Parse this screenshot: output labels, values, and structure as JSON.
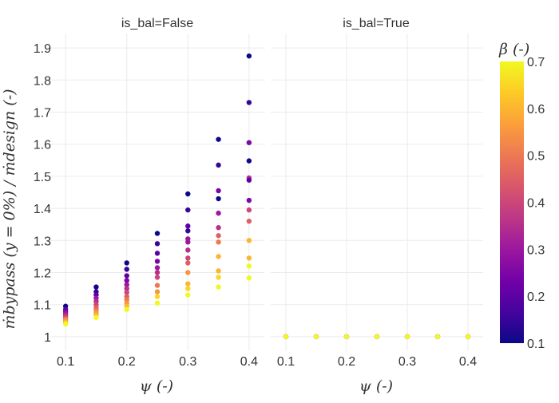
{
  "chart_data": {
    "type": "scatter",
    "facets": [
      {
        "title": "is_bal=False",
        "points": [
          {
            "x": 0.1,
            "y": 1.095,
            "beta": 0.1
          },
          {
            "x": 0.1,
            "y": 1.085,
            "beta": 0.2
          },
          {
            "x": 0.1,
            "y": 1.078,
            "beta": 0.25
          },
          {
            "x": 0.1,
            "y": 1.072,
            "beta": 0.3
          },
          {
            "x": 0.1,
            "y": 1.066,
            "beta": 0.35
          },
          {
            "x": 0.1,
            "y": 1.06,
            "beta": 0.4
          },
          {
            "x": 0.1,
            "y": 1.055,
            "beta": 0.5
          },
          {
            "x": 0.1,
            "y": 1.05,
            "beta": 0.55
          },
          {
            "x": 0.1,
            "y": 1.045,
            "beta": 0.6
          },
          {
            "x": 0.1,
            "y": 1.04,
            "beta": 0.7
          },
          {
            "x": 0.15,
            "y": 1.155,
            "beta": 0.1
          },
          {
            "x": 0.15,
            "y": 1.14,
            "beta": 0.15
          },
          {
            "x": 0.15,
            "y": 1.13,
            "beta": 0.2
          },
          {
            "x": 0.15,
            "y": 1.12,
            "beta": 0.3
          },
          {
            "x": 0.15,
            "y": 1.11,
            "beta": 0.35
          },
          {
            "x": 0.15,
            "y": 1.1,
            "beta": 0.4
          },
          {
            "x": 0.15,
            "y": 1.09,
            "beta": 0.45
          },
          {
            "x": 0.15,
            "y": 1.082,
            "beta": 0.5
          },
          {
            "x": 0.15,
            "y": 1.075,
            "beta": 0.55
          },
          {
            "x": 0.15,
            "y": 1.068,
            "beta": 0.6
          },
          {
            "x": 0.15,
            "y": 1.06,
            "beta": 0.7
          },
          {
            "x": 0.2,
            "y": 1.23,
            "beta": 0.1
          },
          {
            "x": 0.2,
            "y": 1.21,
            "beta": 0.15
          },
          {
            "x": 0.2,
            "y": 1.19,
            "beta": 0.2
          },
          {
            "x": 0.2,
            "y": 1.175,
            "beta": 0.25
          },
          {
            "x": 0.2,
            "y": 1.162,
            "beta": 0.3
          },
          {
            "x": 0.2,
            "y": 1.15,
            "beta": 0.35
          },
          {
            "x": 0.2,
            "y": 1.138,
            "beta": 0.4
          },
          {
            "x": 0.2,
            "y": 1.125,
            "beta": 0.45
          },
          {
            "x": 0.2,
            "y": 1.115,
            "beta": 0.5
          },
          {
            "x": 0.2,
            "y": 1.105,
            "beta": 0.55
          },
          {
            "x": 0.2,
            "y": 1.095,
            "beta": 0.6
          },
          {
            "x": 0.2,
            "y": 1.085,
            "beta": 0.7
          },
          {
            "x": 0.25,
            "y": 1.322,
            "beta": 0.1
          },
          {
            "x": 0.25,
            "y": 1.29,
            "beta": 0.15
          },
          {
            "x": 0.25,
            "y": 1.26,
            "beta": 0.2
          },
          {
            "x": 0.25,
            "y": 1.235,
            "beta": 0.25
          },
          {
            "x": 0.25,
            "y": 1.215,
            "beta": 0.3
          },
          {
            "x": 0.25,
            "y": 1.2,
            "beta": 0.35
          },
          {
            "x": 0.25,
            "y": 1.185,
            "beta": 0.4
          },
          {
            "x": 0.25,
            "y": 1.16,
            "beta": 0.5
          },
          {
            "x": 0.25,
            "y": 1.14,
            "beta": 0.55
          },
          {
            "x": 0.25,
            "y": 1.125,
            "beta": 0.65
          },
          {
            "x": 0.25,
            "y": 1.105,
            "beta": 0.7
          },
          {
            "x": 0.3,
            "y": 1.445,
            "beta": 0.1
          },
          {
            "x": 0.3,
            "y": 1.395,
            "beta": 0.15
          },
          {
            "x": 0.3,
            "y": 1.345,
            "beta": 0.2
          },
          {
            "x": 0.3,
            "y": 1.33,
            "beta": 0.15
          },
          {
            "x": 0.3,
            "y": 1.305,
            "beta": 0.3
          },
          {
            "x": 0.3,
            "y": 1.295,
            "beta": 0.3
          },
          {
            "x": 0.3,
            "y": 1.27,
            "beta": 0.35
          },
          {
            "x": 0.3,
            "y": 1.245,
            "beta": 0.4
          },
          {
            "x": 0.3,
            "y": 1.23,
            "beta": 0.45
          },
          {
            "x": 0.3,
            "y": 1.2,
            "beta": 0.55
          },
          {
            "x": 0.3,
            "y": 1.165,
            "beta": 0.6
          },
          {
            "x": 0.3,
            "y": 1.15,
            "beta": 0.65
          },
          {
            "x": 0.3,
            "y": 1.13,
            "beta": 0.7
          },
          {
            "x": 0.35,
            "y": 1.615,
            "beta": 0.1
          },
          {
            "x": 0.35,
            "y": 1.535,
            "beta": 0.15
          },
          {
            "x": 0.35,
            "y": 1.455,
            "beta": 0.25
          },
          {
            "x": 0.35,
            "y": 1.43,
            "beta": 0.1
          },
          {
            "x": 0.35,
            "y": 1.385,
            "beta": 0.3
          },
          {
            "x": 0.35,
            "y": 1.34,
            "beta": 0.35
          },
          {
            "x": 0.35,
            "y": 1.315,
            "beta": 0.45
          },
          {
            "x": 0.35,
            "y": 1.295,
            "beta": 0.5
          },
          {
            "x": 0.35,
            "y": 1.25,
            "beta": 0.6
          },
          {
            "x": 0.35,
            "y": 1.205,
            "beta": 0.6
          },
          {
            "x": 0.35,
            "y": 1.185,
            "beta": 0.65
          },
          {
            "x": 0.35,
            "y": 1.155,
            "beta": 0.7
          },
          {
            "x": 0.4,
            "y": 1.875,
            "beta": 0.1
          },
          {
            "x": 0.4,
            "y": 1.73,
            "beta": 0.15
          },
          {
            "x": 0.4,
            "y": 1.605,
            "beta": 0.25
          },
          {
            "x": 0.4,
            "y": 1.548,
            "beta": 0.1
          },
          {
            "x": 0.4,
            "y": 1.495,
            "beta": 0.35
          },
          {
            "x": 0.4,
            "y": 1.488,
            "beta": 0.2
          },
          {
            "x": 0.4,
            "y": 1.425,
            "beta": 0.25
          },
          {
            "x": 0.4,
            "y": 1.395,
            "beta": 0.4
          },
          {
            "x": 0.4,
            "y": 1.36,
            "beta": 0.45
          },
          {
            "x": 0.4,
            "y": 1.3,
            "beta": 0.6
          },
          {
            "x": 0.4,
            "y": 1.245,
            "beta": 0.6
          },
          {
            "x": 0.4,
            "y": 1.22,
            "beta": 0.7
          },
          {
            "x": 0.4,
            "y": 1.183,
            "beta": 0.7
          }
        ]
      },
      {
        "title": "is_bal=True",
        "points": [
          {
            "x": 0.1,
            "y": 1.0,
            "beta": 0.1
          },
          {
            "x": 0.1,
            "y": 1.0,
            "beta": 0.4
          },
          {
            "x": 0.1,
            "y": 1.0,
            "beta": 0.7
          },
          {
            "x": 0.15,
            "y": 1.0,
            "beta": 0.1
          },
          {
            "x": 0.15,
            "y": 1.0,
            "beta": 0.4
          },
          {
            "x": 0.15,
            "y": 1.0,
            "beta": 0.7
          },
          {
            "x": 0.2,
            "y": 1.0,
            "beta": 0.1
          },
          {
            "x": 0.2,
            "y": 1.0,
            "beta": 0.4
          },
          {
            "x": 0.2,
            "y": 1.0,
            "beta": 0.7
          },
          {
            "x": 0.25,
            "y": 1.0,
            "beta": 0.1
          },
          {
            "x": 0.25,
            "y": 1.0,
            "beta": 0.4
          },
          {
            "x": 0.25,
            "y": 1.0,
            "beta": 0.7
          },
          {
            "x": 0.3,
            "y": 1.0,
            "beta": 0.1
          },
          {
            "x": 0.3,
            "y": 1.0,
            "beta": 0.4
          },
          {
            "x": 0.3,
            "y": 1.0,
            "beta": 0.7
          },
          {
            "x": 0.35,
            "y": 1.0,
            "beta": 0.1
          },
          {
            "x": 0.35,
            "y": 1.0,
            "beta": 0.4
          },
          {
            "x": 0.35,
            "y": 1.0,
            "beta": 0.7
          },
          {
            "x": 0.4,
            "y": 1.0,
            "beta": 0.1
          },
          {
            "x": 0.4,
            "y": 1.0,
            "beta": 0.4
          },
          {
            "x": 0.4,
            "y": 1.0,
            "beta": 0.7
          }
        ]
      }
    ],
    "xlabel": "ψ (-)",
    "ylabel": "ṁbypass (y = 0%) / ṁdesign (-)",
    "xlim": [
      0.075,
      0.425
    ],
    "ylim": [
      0.955,
      1.945
    ],
    "xticks": [
      0.1,
      0.2,
      0.3,
      0.4
    ],
    "xtick_labels": [
      "0.1",
      "0.2",
      "0.3",
      "0.4"
    ],
    "yticks": [
      1,
      1.1,
      1.2,
      1.3,
      1.4,
      1.5,
      1.6,
      1.7,
      1.8,
      1.9
    ],
    "ytick_labels": [
      "1",
      "1.1",
      "1.2",
      "1.3",
      "1.4",
      "1.5",
      "1.6",
      "1.7",
      "1.8",
      "1.9"
    ],
    "grid": true,
    "colorbar": {
      "title": "β (-)",
      "range": [
        0.1,
        0.7
      ],
      "ticks": [
        0.1,
        0.2,
        0.3,
        0.4,
        0.5,
        0.6,
        0.7
      ],
      "tick_labels": [
        "0.1",
        "0.2",
        "0.3",
        "0.4",
        "0.5",
        "0.6",
        "0.7"
      ],
      "colorscale": [
        "#0d0887",
        "#46039f",
        "#7201a8",
        "#9c179e",
        "#bd3786",
        "#d8576b",
        "#ed7953",
        "#fb9f3a",
        "#fdca26",
        "#f0f921"
      ]
    }
  }
}
